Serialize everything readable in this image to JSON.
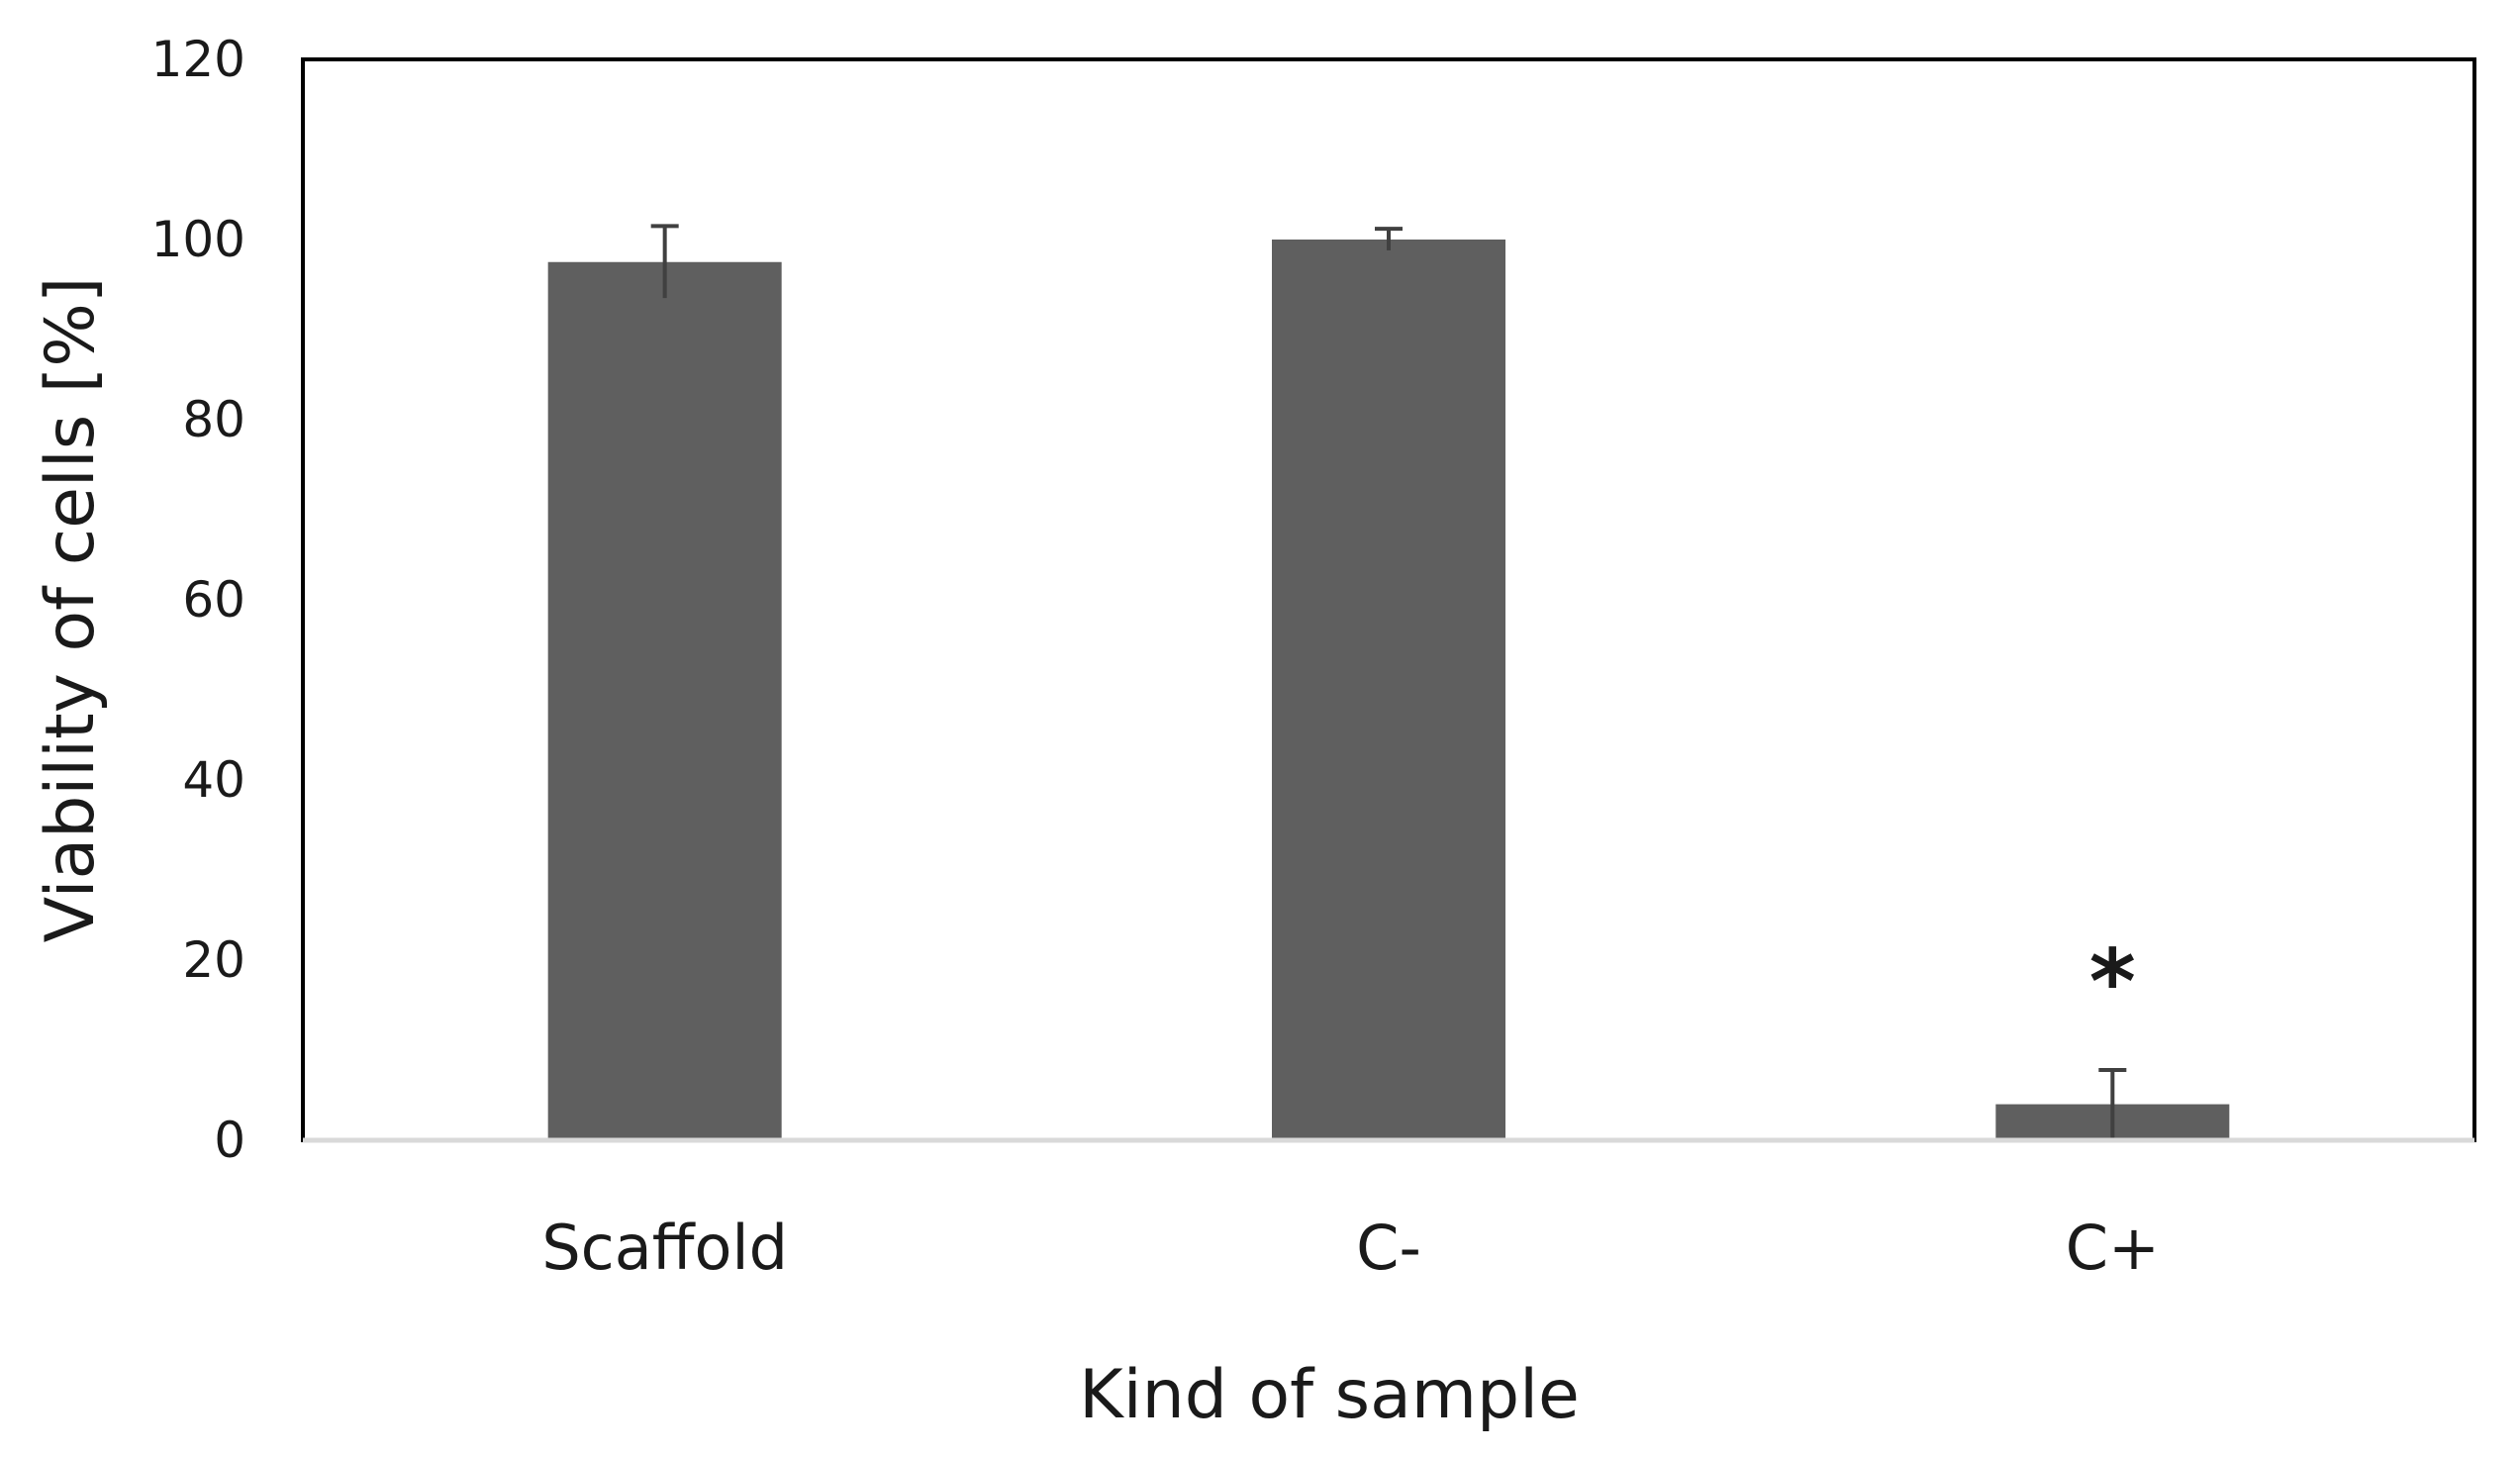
{
  "chart_data": {
    "type": "bar",
    "title": "",
    "xlabel": "Kind of sample",
    "ylabel": "Viability of cells [%]",
    "categories": [
      "Scaffold",
      "C-",
      "C+"
    ],
    "values": [
      97.5,
      100,
      4
    ],
    "errors": [
      4,
      1.2,
      3.8
    ],
    "ylim": [
      0,
      120
    ],
    "yticks": [
      "0",
      "20",
      "40",
      "60",
      "80",
      "100",
      "120"
    ],
    "ytick_values": [
      0,
      20,
      40,
      60,
      80,
      100,
      120
    ],
    "grid": false,
    "legend": "none",
    "bar_color": "#5f5f5f",
    "error_color": "#404040",
    "annotations": [
      {
        "category": "C+",
        "text": "*"
      }
    ]
  }
}
